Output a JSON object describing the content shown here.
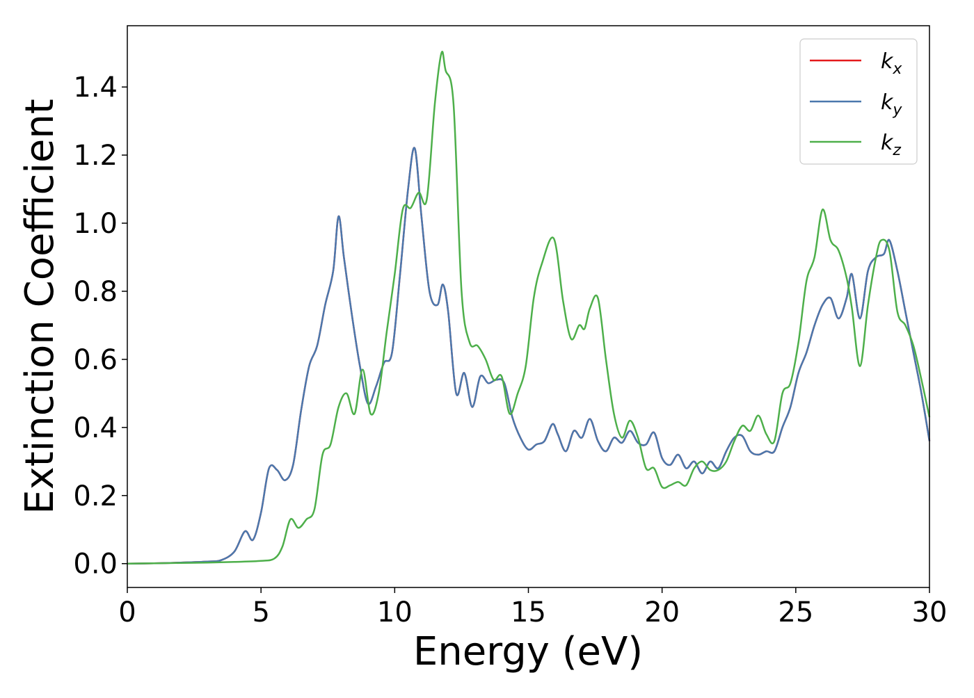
{
  "chart_data": {
    "type": "line",
    "title": "",
    "xlabel": "Energy (eV)",
    "ylabel": "Extinction Coefficient",
    "xlim": [
      0,
      30
    ],
    "ylim": [
      -0.07,
      1.58
    ],
    "x_ticks": [
      0,
      5,
      10,
      15,
      20,
      25,
      30
    ],
    "x_tick_labels": [
      "0",
      "5",
      "10",
      "15",
      "20",
      "25",
      "30"
    ],
    "y_ticks": [
      0.0,
      0.2,
      0.4,
      0.6,
      0.8,
      1.0,
      1.2,
      1.4
    ],
    "y_tick_labels": [
      "0.0",
      "0.2",
      "0.4",
      "0.6",
      "0.8",
      "1.0",
      "1.2",
      "1.4"
    ],
    "grid": false,
    "legend_position": "top-right",
    "series": [
      {
        "name": "k_x",
        "legend_base": "k",
        "legend_sub": "x",
        "color": "#e41a1c",
        "x": [
          0,
          1,
          2,
          3,
          3.5,
          4.0,
          4.4,
          4.7,
          5.0,
          5.3,
          5.6,
          5.9,
          6.2,
          6.5,
          6.8,
          7.1,
          7.4,
          7.7,
          7.9,
          8.1,
          8.4,
          8.7,
          9.0,
          9.3,
          9.6,
          9.9,
          10.2,
          10.5,
          10.75,
          11.0,
          11.3,
          11.6,
          11.8,
          12.0,
          12.3,
          12.6,
          12.9,
          13.2,
          13.5,
          13.8,
          14.1,
          14.4,
          14.7,
          15.0,
          15.3,
          15.6,
          15.9,
          16.1,
          16.4,
          16.7,
          17.0,
          17.3,
          17.6,
          17.9,
          18.2,
          18.5,
          18.8,
          19.1,
          19.4,
          19.7,
          20.0,
          20.3,
          20.6,
          20.9,
          21.2,
          21.5,
          21.8,
          22.1,
          22.4,
          22.7,
          23.0,
          23.3,
          23.6,
          23.9,
          24.2,
          24.5,
          24.8,
          25.1,
          25.4,
          25.7,
          26.0,
          26.3,
          26.6,
          26.9,
          27.1,
          27.4,
          27.7,
          28.0,
          28.3,
          28.5,
          28.8,
          29.1,
          29.4,
          29.7,
          30.0
        ],
        "values": [
          0,
          0.001,
          0.003,
          0.006,
          0.01,
          0.035,
          0.095,
          0.07,
          0.15,
          0.28,
          0.275,
          0.245,
          0.29,
          0.45,
          0.58,
          0.64,
          0.76,
          0.86,
          1.02,
          0.9,
          0.73,
          0.58,
          0.47,
          0.52,
          0.59,
          0.62,
          0.85,
          1.1,
          1.22,
          1.02,
          0.8,
          0.76,
          0.82,
          0.74,
          0.5,
          0.56,
          0.46,
          0.55,
          0.53,
          0.54,
          0.53,
          0.43,
          0.37,
          0.335,
          0.35,
          0.36,
          0.41,
          0.38,
          0.33,
          0.39,
          0.37,
          0.425,
          0.36,
          0.33,
          0.37,
          0.355,
          0.39,
          0.355,
          0.35,
          0.385,
          0.31,
          0.29,
          0.32,
          0.28,
          0.3,
          0.265,
          0.3,
          0.28,
          0.33,
          0.37,
          0.375,
          0.33,
          0.32,
          0.33,
          0.33,
          0.4,
          0.46,
          0.56,
          0.62,
          0.7,
          0.76,
          0.78,
          0.72,
          0.78,
          0.85,
          0.72,
          0.86,
          0.9,
          0.91,
          0.95,
          0.86,
          0.74,
          0.62,
          0.5,
          0.36
        ]
      },
      {
        "name": "k_y",
        "legend_base": "k",
        "legend_sub": "y",
        "color": "#4a78ad",
        "x": [
          0,
          1,
          2,
          3,
          3.5,
          4.0,
          4.4,
          4.7,
          5.0,
          5.3,
          5.6,
          5.9,
          6.2,
          6.5,
          6.8,
          7.1,
          7.4,
          7.7,
          7.9,
          8.1,
          8.4,
          8.7,
          9.0,
          9.3,
          9.6,
          9.9,
          10.2,
          10.5,
          10.75,
          11.0,
          11.3,
          11.6,
          11.8,
          12.0,
          12.3,
          12.6,
          12.9,
          13.2,
          13.5,
          13.8,
          14.1,
          14.4,
          14.7,
          15.0,
          15.3,
          15.6,
          15.9,
          16.1,
          16.4,
          16.7,
          17.0,
          17.3,
          17.6,
          17.9,
          18.2,
          18.5,
          18.8,
          19.1,
          19.4,
          19.7,
          20.0,
          20.3,
          20.6,
          20.9,
          21.2,
          21.5,
          21.8,
          22.1,
          22.4,
          22.7,
          23.0,
          23.3,
          23.6,
          23.9,
          24.2,
          24.5,
          24.8,
          25.1,
          25.4,
          25.7,
          26.0,
          26.3,
          26.6,
          26.9,
          27.1,
          27.4,
          27.7,
          28.0,
          28.3,
          28.5,
          28.8,
          29.1,
          29.4,
          29.7,
          30.0
        ],
        "values": [
          0,
          0.001,
          0.003,
          0.006,
          0.01,
          0.035,
          0.095,
          0.07,
          0.15,
          0.28,
          0.275,
          0.245,
          0.29,
          0.45,
          0.58,
          0.64,
          0.76,
          0.86,
          1.02,
          0.9,
          0.73,
          0.58,
          0.47,
          0.52,
          0.59,
          0.62,
          0.85,
          1.1,
          1.22,
          1.02,
          0.8,
          0.76,
          0.82,
          0.74,
          0.5,
          0.56,
          0.46,
          0.55,
          0.53,
          0.54,
          0.53,
          0.43,
          0.37,
          0.335,
          0.35,
          0.36,
          0.41,
          0.38,
          0.33,
          0.39,
          0.37,
          0.425,
          0.36,
          0.33,
          0.37,
          0.355,
          0.39,
          0.355,
          0.35,
          0.385,
          0.31,
          0.29,
          0.32,
          0.28,
          0.3,
          0.265,
          0.3,
          0.28,
          0.33,
          0.37,
          0.375,
          0.33,
          0.32,
          0.33,
          0.33,
          0.4,
          0.46,
          0.56,
          0.62,
          0.7,
          0.76,
          0.78,
          0.72,
          0.78,
          0.85,
          0.72,
          0.86,
          0.9,
          0.91,
          0.95,
          0.86,
          0.74,
          0.62,
          0.5,
          0.36
        ]
      },
      {
        "name": "k_z",
        "legend_base": "k",
        "legend_sub": "z",
        "color": "#4daf4a",
        "x": [
          0,
          1,
          2,
          3,
          4,
          5.0,
          5.5,
          5.8,
          6.1,
          6.4,
          6.7,
          7.0,
          7.3,
          7.6,
          7.9,
          8.2,
          8.5,
          8.8,
          9.1,
          9.4,
          9.7,
          10.0,
          10.3,
          10.6,
          10.9,
          11.2,
          11.5,
          11.75,
          11.9,
          12.2,
          12.5,
          12.8,
          13.1,
          13.4,
          13.7,
          14.0,
          14.3,
          14.6,
          14.9,
          15.2,
          15.5,
          15.95,
          16.3,
          16.6,
          16.9,
          17.1,
          17.3,
          17.6,
          17.9,
          18.2,
          18.5,
          18.8,
          19.1,
          19.4,
          19.7,
          20.0,
          20.3,
          20.6,
          20.9,
          21.2,
          21.5,
          21.8,
          22.1,
          22.4,
          22.7,
          23.0,
          23.3,
          23.6,
          23.9,
          24.2,
          24.5,
          24.8,
          25.1,
          25.4,
          25.7,
          26.0,
          26.3,
          26.6,
          26.9,
          27.1,
          27.4,
          27.7,
          28.0,
          28.2,
          28.5,
          28.8,
          29.1,
          29.4,
          29.7,
          30.0
        ],
        "values": [
          0,
          0.001,
          0.002,
          0.003,
          0.005,
          0.008,
          0.015,
          0.05,
          0.13,
          0.105,
          0.13,
          0.16,
          0.32,
          0.35,
          0.46,
          0.5,
          0.44,
          0.57,
          0.44,
          0.5,
          0.68,
          0.85,
          1.04,
          1.045,
          1.09,
          1.07,
          1.35,
          1.5,
          1.45,
          1.35,
          0.8,
          0.65,
          0.64,
          0.6,
          0.54,
          0.55,
          0.44,
          0.5,
          0.58,
          0.78,
          0.88,
          0.955,
          0.77,
          0.66,
          0.7,
          0.69,
          0.75,
          0.78,
          0.6,
          0.44,
          0.37,
          0.42,
          0.37,
          0.28,
          0.28,
          0.225,
          0.23,
          0.24,
          0.23,
          0.28,
          0.3,
          0.275,
          0.275,
          0.3,
          0.36,
          0.405,
          0.39,
          0.435,
          0.38,
          0.36,
          0.5,
          0.53,
          0.65,
          0.83,
          0.9,
          1.04,
          0.95,
          0.92,
          0.84,
          0.75,
          0.58,
          0.76,
          0.9,
          0.95,
          0.92,
          0.74,
          0.7,
          0.64,
          0.54,
          0.43
        ]
      }
    ]
  }
}
